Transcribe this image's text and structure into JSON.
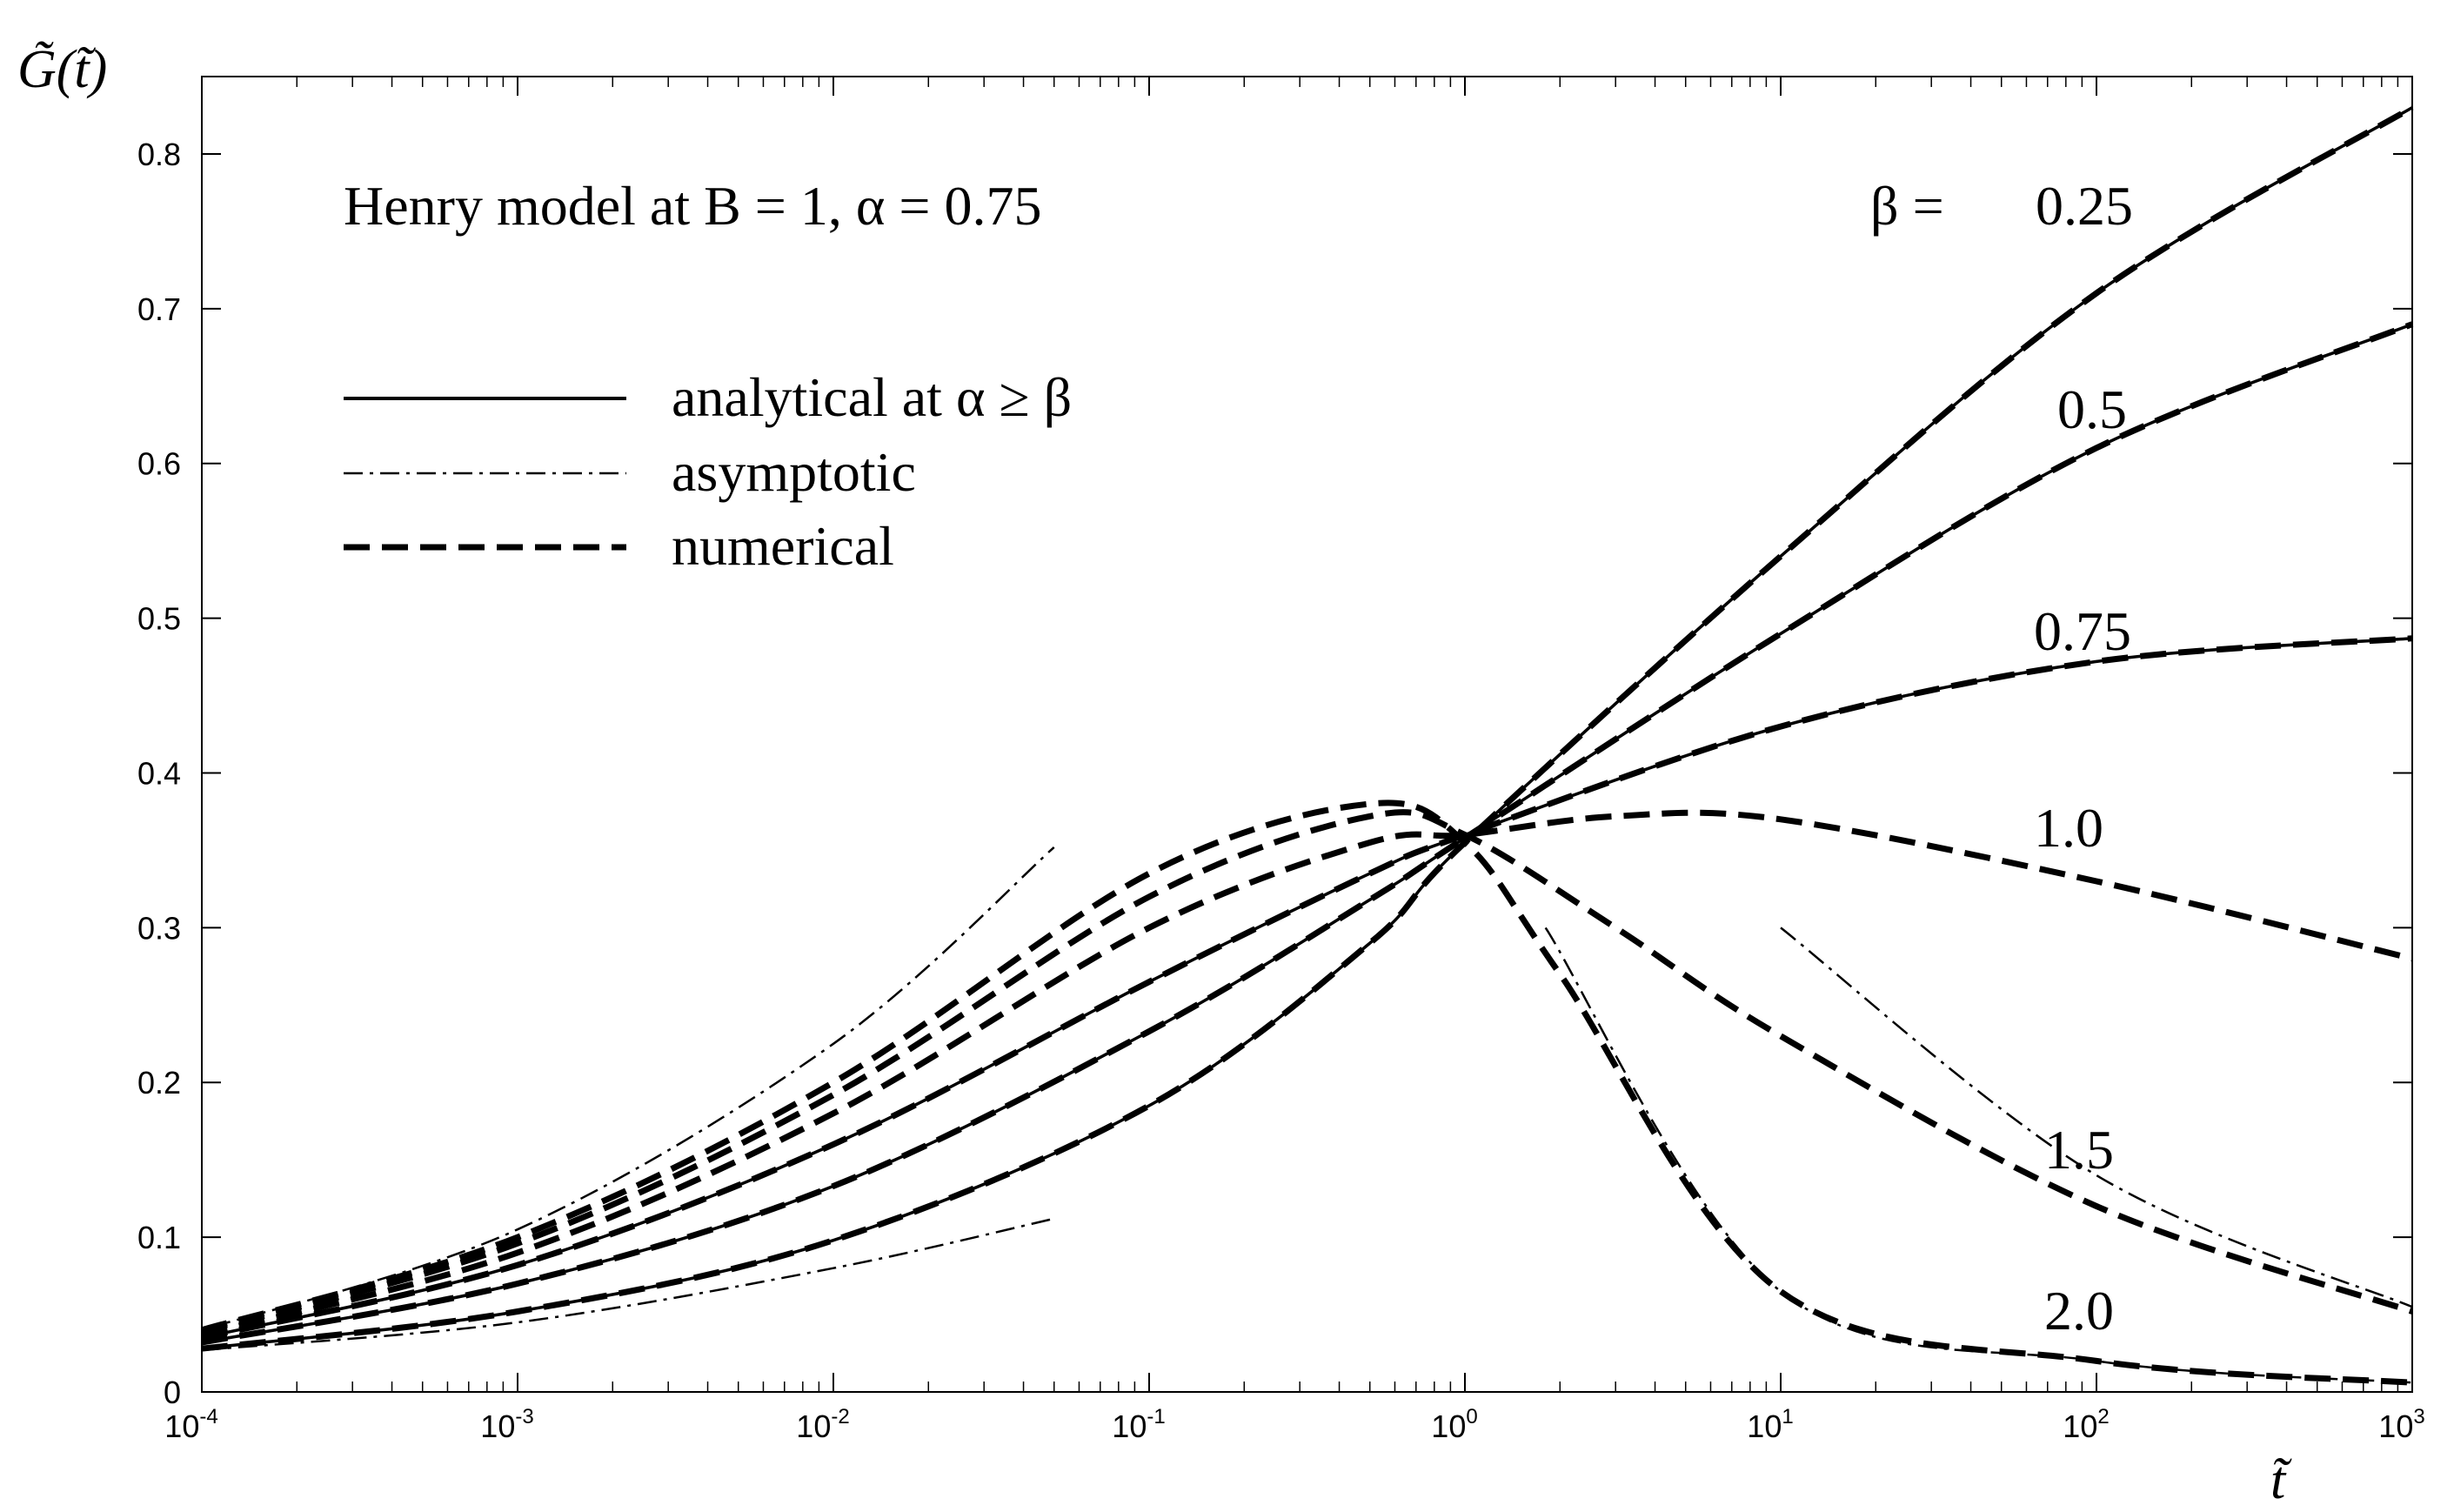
{
  "chart_data": {
    "type": "line",
    "title": "Henry model at B = 1, α = 0.75",
    "ylabel": "G̃(t̃)",
    "xlabel": "t̃",
    "xscale": "log",
    "xlim": [
      0.0001,
      1000
    ],
    "ylim": [
      0,
      0.85
    ],
    "x_ticks": [
      {
        "base": "10",
        "exp": "-4",
        "value": 0.0001
      },
      {
        "base": "10",
        "exp": "-3",
        "value": 0.001
      },
      {
        "base": "10",
        "exp": "-2",
        "value": 0.01
      },
      {
        "base": "10",
        "exp": "-1",
        "value": 0.1
      },
      {
        "base": "10",
        "exp": "0",
        "value": 1
      },
      {
        "base": "10",
        "exp": "1",
        "value": 10
      },
      {
        "base": "10",
        "exp": "2",
        "value": 100
      },
      {
        "base": "10",
        "exp": "3",
        "value": 1000
      }
    ],
    "y_ticks": [
      "0",
      "0.1",
      "0.2",
      "0.3",
      "0.4",
      "0.5",
      "0.6",
      "0.7",
      "0.8"
    ],
    "legend": {
      "placement": "top-left",
      "entries": [
        {
          "label": "analytical at α ≥ β",
          "style": "solid"
        },
        {
          "label": "asymptotic",
          "style": "dashdot"
        },
        {
          "label": "numerical",
          "style": "dashed"
        }
      ]
    },
    "beta_header": "β =",
    "series": [
      {
        "name": "0.25",
        "style": "solid+dashed",
        "x": [
          0.0001,
          0.001,
          0.01,
          0.1,
          0.5,
          1,
          10,
          100,
          1000
        ],
        "y": [
          0.028,
          0.052,
          0.098,
          0.185,
          0.29,
          0.355,
          0.54,
          0.71,
          0.83
        ]
      },
      {
        "name": "0.5",
        "style": "solid+dashed",
        "x": [
          0.0001,
          0.001,
          0.01,
          0.1,
          0.5,
          1,
          10,
          100,
          1000
        ],
        "y": [
          0.032,
          0.07,
          0.133,
          0.233,
          0.318,
          0.358,
          0.49,
          0.61,
          0.69
        ]
      },
      {
        "name": "0.75",
        "style": "solid+dashed",
        "x": [
          0.0001,
          0.001,
          0.01,
          0.1,
          0.5,
          1,
          10,
          100,
          1000
        ],
        "y": [
          0.035,
          0.082,
          0.16,
          0.265,
          0.335,
          0.36,
          0.43,
          0.472,
          0.487
        ]
      },
      {
        "name": "1.0",
        "style": "dashed",
        "x": [
          0.0001,
          0.001,
          0.01,
          0.1,
          0.5,
          1,
          3,
          10,
          100,
          1000
        ],
        "y": [
          0.037,
          0.09,
          0.18,
          0.3,
          0.355,
          0.36,
          0.372,
          0.37,
          0.33,
          0.28
        ]
      },
      {
        "name": "1.5",
        "style": "dashed",
        "x": [
          0.0001,
          0.001,
          0.01,
          0.1,
          0.5,
          1,
          3,
          10,
          100,
          1000
        ],
        "y": [
          0.039,
          0.096,
          0.192,
          0.32,
          0.372,
          0.36,
          0.3,
          0.23,
          0.12,
          0.052
        ]
      },
      {
        "name": "2.0",
        "style": "dashed",
        "x": [
          0.0001,
          0.001,
          0.01,
          0.1,
          0.5,
          1,
          2,
          10,
          100,
          1000
        ],
        "y": [
          0.04,
          0.1,
          0.2,
          0.335,
          0.38,
          0.355,
          0.27,
          0.065,
          0.02,
          0.006
        ]
      }
    ],
    "asymptotes": [
      {
        "x": [
          0.0001,
          0.001,
          0.01,
          0.05
        ],
        "y": [
          0.027,
          0.045,
          0.08,
          0.112
        ]
      },
      {
        "x": [
          0.0001,
          0.001,
          0.01,
          0.05
        ],
        "y": [
          0.04,
          0.105,
          0.225,
          0.352
        ]
      },
      {
        "x": [
          10,
          100,
          1000
        ],
        "y": [
          0.3,
          0.14,
          0.055
        ]
      },
      {
        "x": [
          1.8,
          10,
          100,
          1000
        ],
        "y": [
          0.3,
          0.065,
          0.02,
          0.006
        ]
      }
    ]
  }
}
